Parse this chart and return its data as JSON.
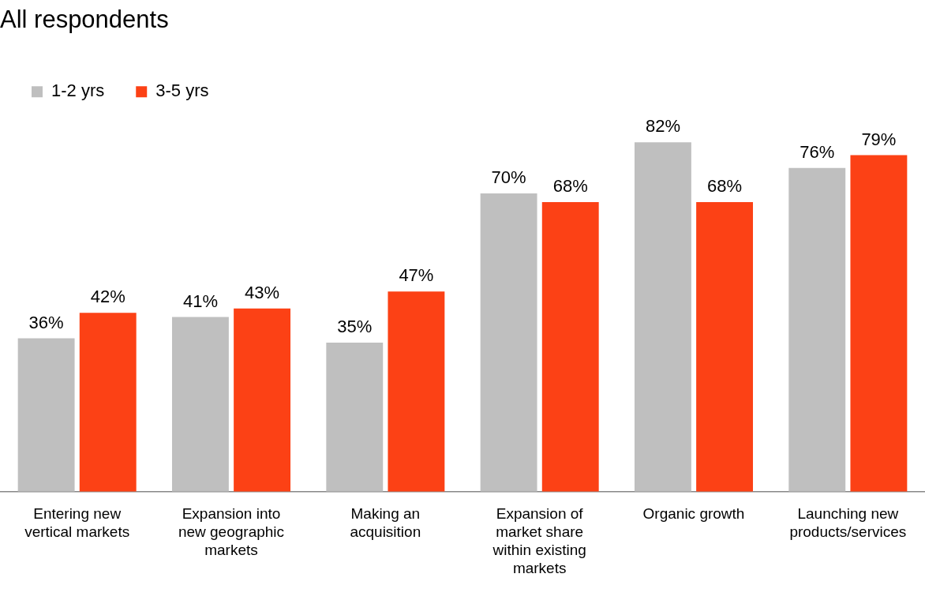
{
  "chart_data": {
    "type": "bar",
    "title": "All respondents",
    "categories": [
      "Entering new vertical markets",
      "Expansion into new geographic markets",
      "Making an acquisition",
      "Expansion of market share within existing markets",
      "Organic growth",
      "Launching new products/services"
    ],
    "series": [
      {
        "name": "1-2 yrs",
        "color": "#bfbfbf",
        "values": [
          36,
          41,
          35,
          70,
          82,
          76
        ],
        "value_labels": [
          "36%",
          "41%",
          "35%",
          "70%",
          "82%",
          "76%"
        ]
      },
      {
        "name": "3-5 yrs",
        "color": "#fc4115",
        "values": [
          42,
          43,
          47,
          68,
          68,
          79
        ],
        "value_labels": [
          "42%",
          "43%",
          "47%",
          "68%",
          "68%",
          "79%"
        ]
      }
    ],
    "grid": false,
    "legend": "top left"
  }
}
